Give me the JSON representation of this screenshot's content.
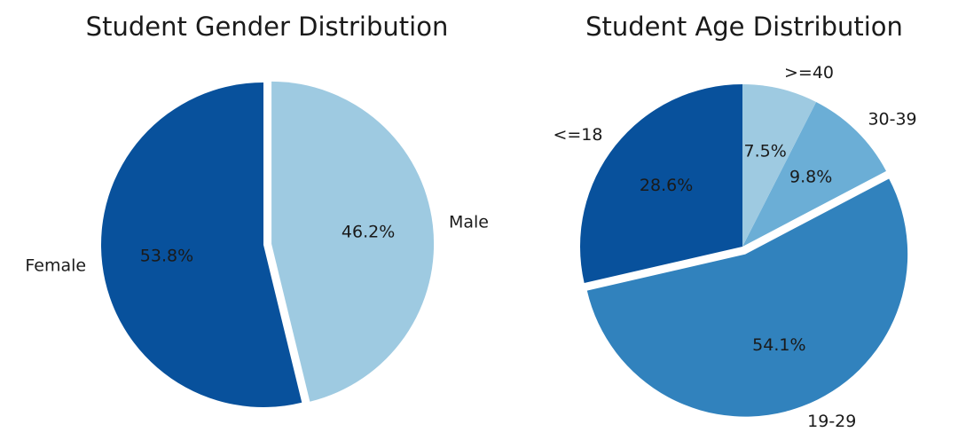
{
  "chart_data": [
    {
      "type": "pie",
      "title": "Student Gender Distribution",
      "slices": [
        {
          "label": "Female",
          "value": 53.8,
          "pct_label": "53.8%",
          "color": "#08519c",
          "exploded": false
        },
        {
          "label": "Male",
          "value": 46.2,
          "pct_label": "46.2%",
          "color": "#9ecae1",
          "exploded": true
        }
      ],
      "start_angle_deg": 90,
      "direction": "counterclockwise",
      "legend": "none"
    },
    {
      "type": "pie",
      "title": "Student Age Distribution",
      "slices": [
        {
          "label": "<=18",
          "value": 28.6,
          "pct_label": "28.6%",
          "color": "#08519c",
          "exploded": false
        },
        {
          "label": "19-29",
          "value": 54.1,
          "pct_label": "54.1%",
          "color": "#3182bd",
          "exploded": true
        },
        {
          "label": "30-39",
          "value": 9.8,
          "pct_label": "9.8%",
          "color": "#6baed6",
          "exploded": false
        },
        {
          "label": ">=40",
          "value": 7.5,
          "pct_label": "7.5%",
          "color": "#9ecae1",
          "exploded": false
        }
      ],
      "start_angle_deg": 90,
      "direction": "counterclockwise",
      "legend": "none"
    }
  ]
}
